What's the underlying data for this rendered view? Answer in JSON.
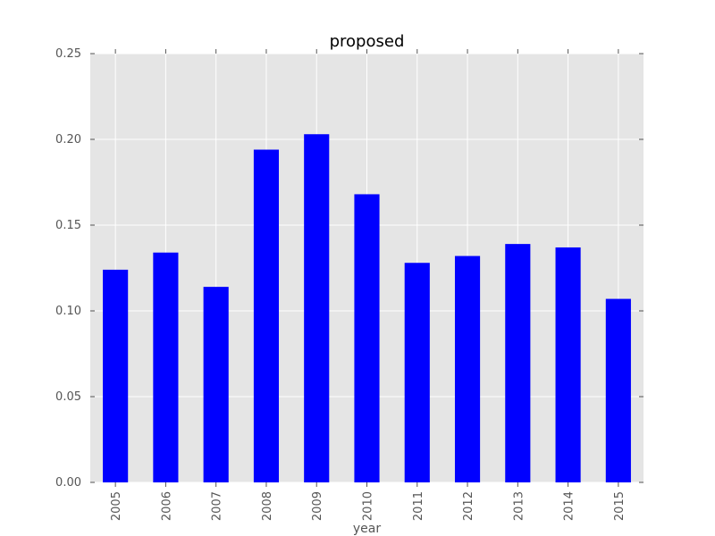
{
  "chart_data": {
    "type": "bar",
    "title": "proposed",
    "xlabel": "year",
    "ylabel": "",
    "categories": [
      "2005",
      "2006",
      "2007",
      "2008",
      "2009",
      "2010",
      "2011",
      "2012",
      "2013",
      "2014",
      "2015"
    ],
    "values": [
      0.124,
      0.134,
      0.114,
      0.194,
      0.203,
      0.168,
      0.128,
      0.132,
      0.139,
      0.137,
      0.107
    ],
    "ylim": [
      0,
      0.25
    ],
    "yticks": [
      "0.00",
      "0.05",
      "0.10",
      "0.15",
      "0.20",
      "0.25"
    ],
    "grid": true,
    "colors": {
      "bar": "#0000ff",
      "plot_background": "#e5e5e5",
      "grid": "#ffffff"
    }
  }
}
